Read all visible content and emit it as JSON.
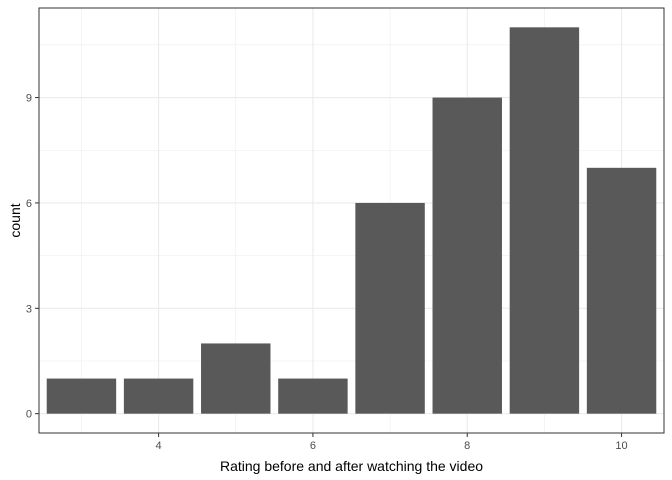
{
  "chart_data": {
    "type": "bar",
    "xlabel": "Rating before and after watching the video",
    "ylabel": "count",
    "x": [
      3,
      4,
      5,
      6,
      7,
      8,
      9,
      10
    ],
    "values": [
      1,
      1,
      2,
      1,
      6,
      9,
      11,
      7
    ],
    "xlim": [
      2.45,
      10.55
    ],
    "ylim": [
      -0.55,
      11.55
    ],
    "x_ticks": [
      4,
      6,
      8,
      10
    ],
    "y_ticks": [
      0,
      3,
      6,
      9
    ],
    "x_tick_labels": [
      "4",
      "6",
      "8",
      "10"
    ],
    "y_tick_labels": [
      "0",
      "3",
      "6",
      "9"
    ],
    "grid": true,
    "bar_color": "#595959",
    "grid_color": "#ebebeb",
    "panel_border_color": "#333333"
  }
}
